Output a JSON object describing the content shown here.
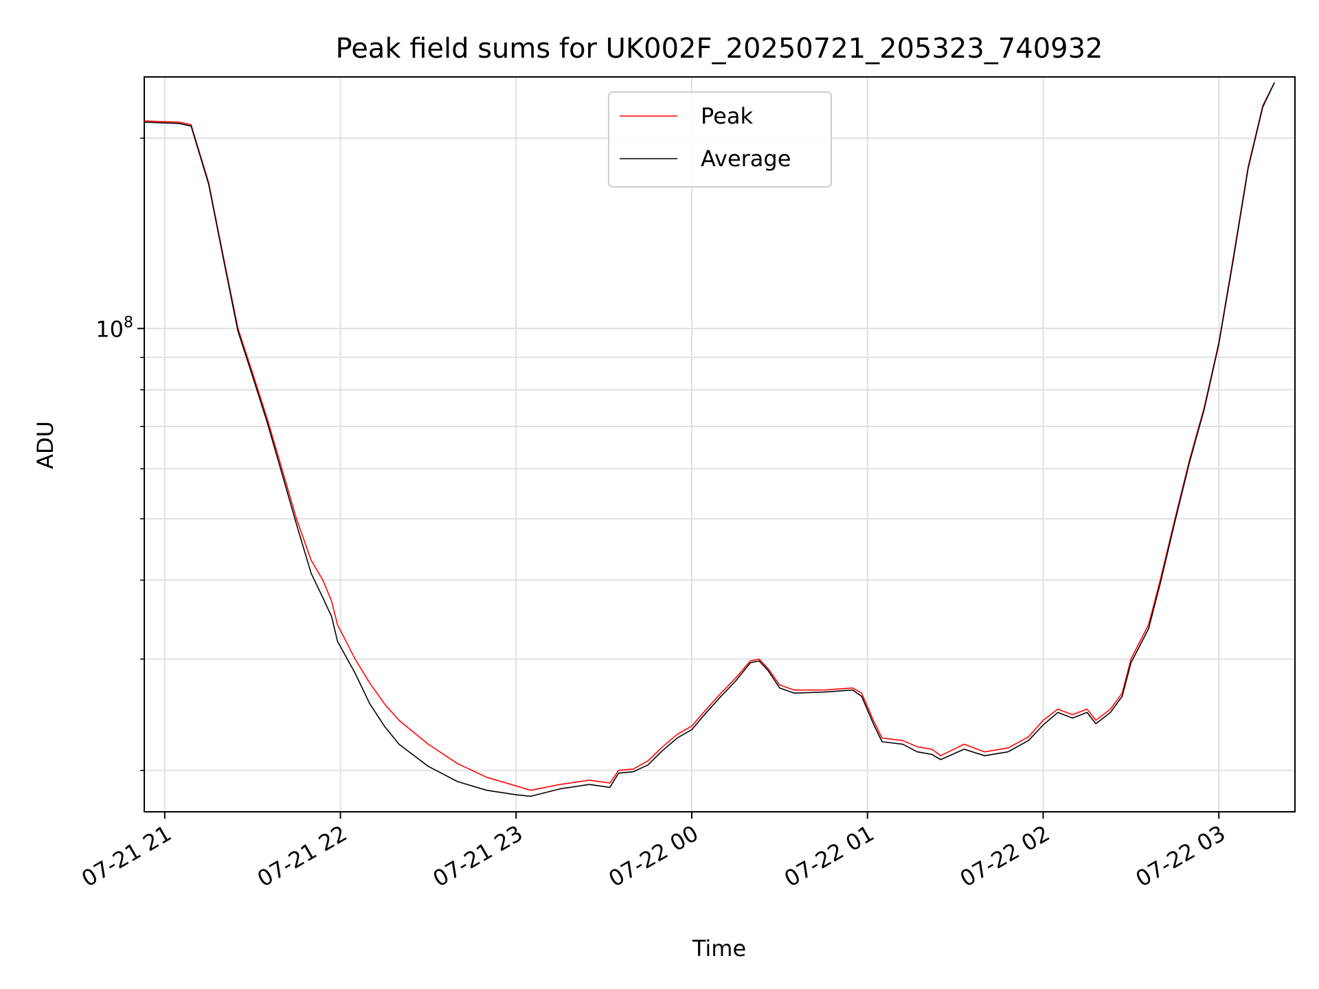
{
  "chart_data": {
    "type": "line",
    "title": "Peak field sums for UK002F_20250721_205323_740932",
    "xlabel": "Time",
    "ylabel": "ADU",
    "yscale": "log",
    "grid": true,
    "legend_position": "upper-center",
    "x_ticks": [
      "07-21 21",
      "07-21 22",
      "07-21 23",
      "07-22 00",
      "07-22 01",
      "07-22 02",
      "07-22 03"
    ],
    "y_tick_major": {
      "base": "10",
      "exp": "8",
      "value": 100000000
    },
    "y_minor_ticks": [
      20000000,
      30000000,
      40000000,
      50000000,
      60000000,
      70000000,
      80000000,
      90000000,
      200000000
    ],
    "xlim": [
      "2025-07-21T20:53:00",
      "2025-07-22T03:26:00"
    ],
    "ylim": [
      17200000,
      250000000
    ],
    "colors": {
      "peak": "#ff0000",
      "average": "#000000"
    },
    "series": [
      {
        "name": "Peak",
        "color": "#ff0000",
        "points": [
          [
            "2025-07-21T20:53:00",
            213000000
          ],
          [
            "2025-07-21T21:05:00",
            212000000
          ],
          [
            "2025-07-21T21:09:00",
            210000000
          ],
          [
            "2025-07-21T21:15:00",
            170000000
          ],
          [
            "2025-07-21T21:20:00",
            130000000
          ],
          [
            "2025-07-21T21:25:00",
            100000000
          ],
          [
            "2025-07-21T21:30:00",
            85000000
          ],
          [
            "2025-07-21T21:35:00",
            72000000
          ],
          [
            "2025-07-21T21:40:00",
            60000000
          ],
          [
            "2025-07-21T21:45:00",
            50000000
          ],
          [
            "2025-07-21T21:50:00",
            43000000
          ],
          [
            "2025-07-21T21:54:00",
            40000000
          ],
          [
            "2025-07-21T21:57:00",
            37000000
          ],
          [
            "2025-07-21T21:59:00",
            34000000
          ],
          [
            "2025-07-21T22:05:00",
            30000000
          ],
          [
            "2025-07-21T22:10:00",
            27500000
          ],
          [
            "2025-07-21T22:15:00",
            25500000
          ],
          [
            "2025-07-21T22:20:00",
            24000000
          ],
          [
            "2025-07-21T22:30:00",
            22000000
          ],
          [
            "2025-07-21T22:40:00",
            20500000
          ],
          [
            "2025-07-21T22:50:00",
            19500000
          ],
          [
            "2025-07-21T23:00:00",
            18900000
          ],
          [
            "2025-07-21T23:05:00",
            18600000
          ],
          [
            "2025-07-21T23:15:00",
            19000000
          ],
          [
            "2025-07-21T23:25:00",
            19300000
          ],
          [
            "2025-07-21T23:32:00",
            19100000
          ],
          [
            "2025-07-21T23:35:00",
            20000000
          ],
          [
            "2025-07-21T23:40:00",
            20100000
          ],
          [
            "2025-07-21T23:45:00",
            20700000
          ],
          [
            "2025-07-21T23:50:00",
            21800000
          ],
          [
            "2025-07-21T23:55:00",
            22800000
          ],
          [
            "2025-07-22T00:00:00",
            23500000
          ],
          [
            "2025-07-22T00:05:00",
            25000000
          ],
          [
            "2025-07-22T00:10:00",
            26500000
          ],
          [
            "2025-07-22T00:15:00",
            28000000
          ],
          [
            "2025-07-22T00:20:00",
            29800000
          ],
          [
            "2025-07-22T00:23:00",
            30000000
          ],
          [
            "2025-07-22T00:26:00",
            29000000
          ],
          [
            "2025-07-22T00:30:00",
            27300000
          ],
          [
            "2025-07-22T00:35:00",
            26800000
          ],
          [
            "2025-07-22T00:45:00",
            26800000
          ],
          [
            "2025-07-22T00:55:00",
            27000000
          ],
          [
            "2025-07-22T00:58:00",
            26500000
          ],
          [
            "2025-07-22T01:02:00",
            24000000
          ],
          [
            "2025-07-22T01:05:00",
            22500000
          ],
          [
            "2025-07-22T01:12:00",
            22300000
          ],
          [
            "2025-07-22T01:17:00",
            21800000
          ],
          [
            "2025-07-22T01:22:00",
            21600000
          ],
          [
            "2025-07-22T01:25:00",
            21100000
          ],
          [
            "2025-07-22T01:33:00",
            22000000
          ],
          [
            "2025-07-22T01:40:00",
            21400000
          ],
          [
            "2025-07-22T01:48:00",
            21700000
          ],
          [
            "2025-07-22T01:55:00",
            22600000
          ],
          [
            "2025-07-22T02:00:00",
            24000000
          ],
          [
            "2025-07-22T02:05:00",
            25000000
          ],
          [
            "2025-07-22T02:10:00",
            24500000
          ],
          [
            "2025-07-22T02:15:00",
            25000000
          ],
          [
            "2025-07-22T02:18:00",
            24000000
          ],
          [
            "2025-07-22T02:23:00",
            25000000
          ],
          [
            "2025-07-22T02:27:00",
            26500000
          ],
          [
            "2025-07-22T02:30:00",
            30000000
          ],
          [
            "2025-07-22T02:36:00",
            34000000
          ],
          [
            "2025-07-22T02:40:00",
            40000000
          ],
          [
            "2025-07-22T02:45:00",
            50000000
          ],
          [
            "2025-07-22T02:50:00",
            62000000
          ],
          [
            "2025-07-22T02:55:00",
            75000000
          ],
          [
            "2025-07-22T03:00:00",
            95000000
          ],
          [
            "2025-07-22T03:05:00",
            130000000
          ],
          [
            "2025-07-22T03:10:00",
            180000000
          ],
          [
            "2025-07-22T03:15:00",
            225000000
          ],
          [
            "2025-07-22T03:19:00",
            245000000
          ]
        ]
      },
      {
        "name": "Average",
        "color": "#000000",
        "points": [
          [
            "2025-07-21T20:53:00",
            212000000
          ],
          [
            "2025-07-21T21:05:00",
            211000000
          ],
          [
            "2025-07-21T21:09:00",
            209000000
          ],
          [
            "2025-07-21T21:15:00",
            169000000
          ],
          [
            "2025-07-21T21:20:00",
            129000000
          ],
          [
            "2025-07-21T21:25:00",
            99000000
          ],
          [
            "2025-07-21T21:30:00",
            84000000
          ],
          [
            "2025-07-21T21:35:00",
            71000000
          ],
          [
            "2025-07-21T21:40:00",
            59000000
          ],
          [
            "2025-07-21T21:45:00",
            49000000
          ],
          [
            "2025-07-21T21:50:00",
            41000000
          ],
          [
            "2025-07-21T21:54:00",
            37500000
          ],
          [
            "2025-07-21T21:57:00",
            35000000
          ],
          [
            "2025-07-21T21:59:00",
            32000000
          ],
          [
            "2025-07-21T22:05:00",
            28500000
          ],
          [
            "2025-07-21T22:10:00",
            25500000
          ],
          [
            "2025-07-21T22:15:00",
            23500000
          ],
          [
            "2025-07-21T22:20:00",
            22000000
          ],
          [
            "2025-07-21T22:30:00",
            20300000
          ],
          [
            "2025-07-21T22:40:00",
            19200000
          ],
          [
            "2025-07-21T22:50:00",
            18600000
          ],
          [
            "2025-07-21T23:00:00",
            18300000
          ],
          [
            "2025-07-21T23:05:00",
            18200000
          ],
          [
            "2025-07-21T23:15:00",
            18700000
          ],
          [
            "2025-07-21T23:25:00",
            19000000
          ],
          [
            "2025-07-21T23:32:00",
            18800000
          ],
          [
            "2025-07-21T23:35:00",
            19800000
          ],
          [
            "2025-07-21T23:40:00",
            19900000
          ],
          [
            "2025-07-21T23:45:00",
            20400000
          ],
          [
            "2025-07-21T23:50:00",
            21500000
          ],
          [
            "2025-07-21T23:55:00",
            22500000
          ],
          [
            "2025-07-22T00:00:00",
            23200000
          ],
          [
            "2025-07-22T00:05:00",
            24700000
          ],
          [
            "2025-07-22T00:10:00",
            26200000
          ],
          [
            "2025-07-22T00:15:00",
            27700000
          ],
          [
            "2025-07-22T00:20:00",
            29600000
          ],
          [
            "2025-07-22T00:23:00",
            29800000
          ],
          [
            "2025-07-22T00:26:00",
            28800000
          ],
          [
            "2025-07-22T00:30:00",
            27000000
          ],
          [
            "2025-07-22T00:35:00",
            26500000
          ],
          [
            "2025-07-22T00:45:00",
            26600000
          ],
          [
            "2025-07-22T00:55:00",
            26800000
          ],
          [
            "2025-07-22T00:58:00",
            26200000
          ],
          [
            "2025-07-22T01:02:00",
            23700000
          ],
          [
            "2025-07-22T01:05:00",
            22200000
          ],
          [
            "2025-07-22T01:12:00",
            22000000
          ],
          [
            "2025-07-22T01:17:00",
            21400000
          ],
          [
            "2025-07-22T01:22:00",
            21200000
          ],
          [
            "2025-07-22T01:25:00",
            20800000
          ],
          [
            "2025-07-22T01:33:00",
            21600000
          ],
          [
            "2025-07-22T01:40:00",
            21100000
          ],
          [
            "2025-07-22T01:48:00",
            21400000
          ],
          [
            "2025-07-22T01:55:00",
            22300000
          ],
          [
            "2025-07-22T02:00:00",
            23600000
          ],
          [
            "2025-07-22T02:05:00",
            24700000
          ],
          [
            "2025-07-22T02:10:00",
            24200000
          ],
          [
            "2025-07-22T02:15:00",
            24700000
          ],
          [
            "2025-07-22T02:18:00",
            23700000
          ],
          [
            "2025-07-22T02:23:00",
            24700000
          ],
          [
            "2025-07-22T02:27:00",
            26200000
          ],
          [
            "2025-07-22T02:30:00",
            29600000
          ],
          [
            "2025-07-22T02:36:00",
            33500000
          ],
          [
            "2025-07-22T02:40:00",
            39500000
          ],
          [
            "2025-07-22T02:45:00",
            49500000
          ],
          [
            "2025-07-22T02:50:00",
            61500000
          ],
          [
            "2025-07-22T02:55:00",
            74500000
          ],
          [
            "2025-07-22T03:00:00",
            94500000
          ],
          [
            "2025-07-22T03:05:00",
            129000000
          ],
          [
            "2025-07-22T03:10:00",
            179000000
          ],
          [
            "2025-07-22T03:15:00",
            224000000
          ],
          [
            "2025-07-22T03:19:00",
            245000000
          ]
        ]
      }
    ]
  }
}
